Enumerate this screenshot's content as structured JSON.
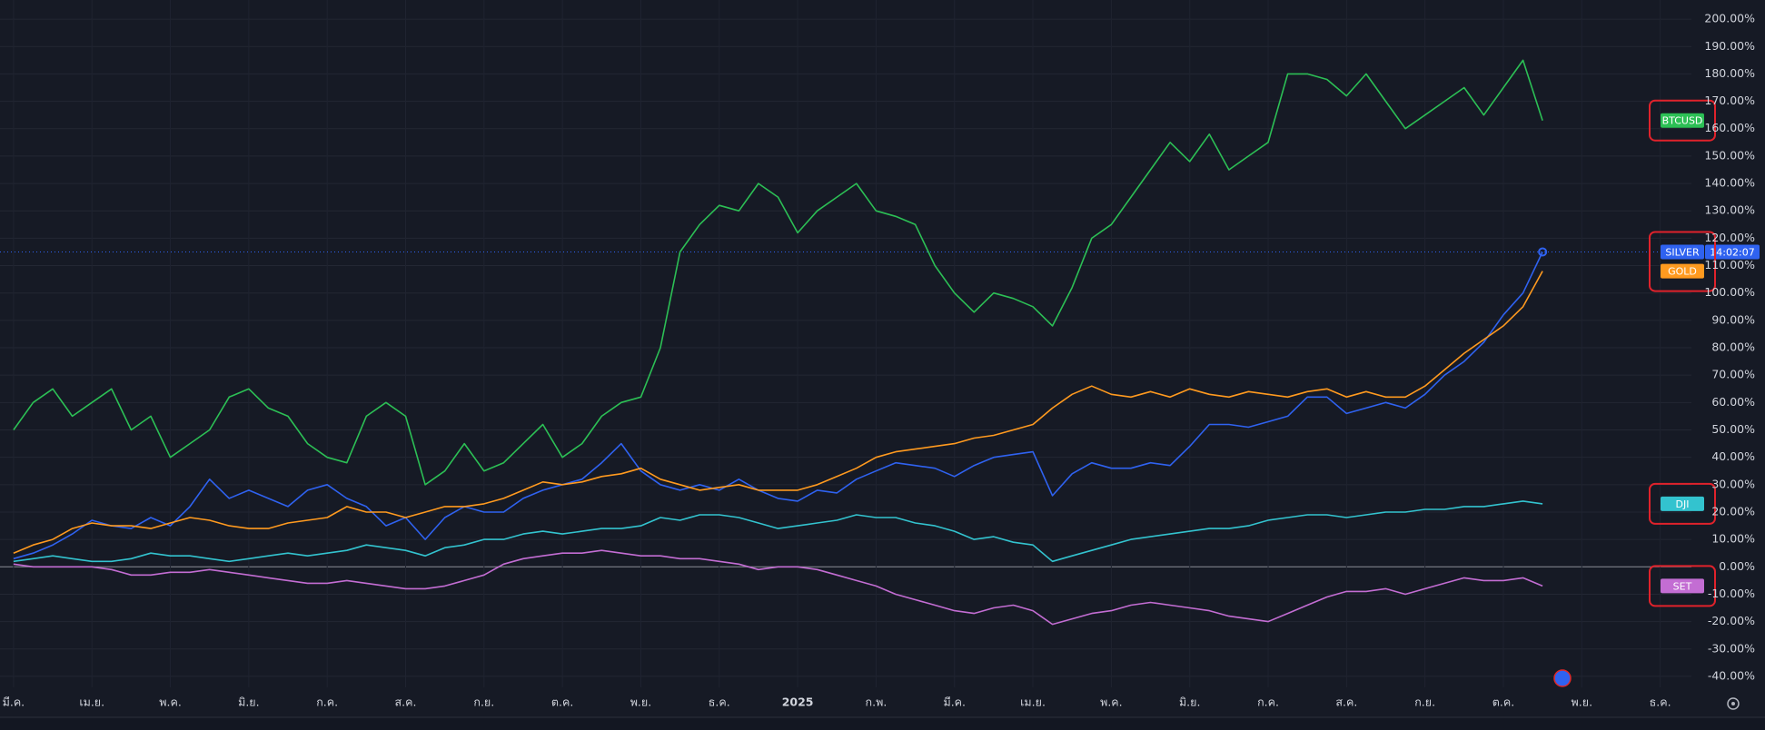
{
  "chart_data": {
    "type": "line",
    "categories": [
      "มี.ค.",
      null,
      null,
      null,
      "เม.ย.",
      null,
      null,
      null,
      "พ.ค.",
      null,
      null,
      null,
      "มิ.ย.",
      null,
      null,
      null,
      "ก.ค.",
      null,
      null,
      null,
      "ส.ค.",
      null,
      null,
      null,
      "ก.ย.",
      null,
      null,
      null,
      "ต.ค.",
      null,
      null,
      null,
      "พ.ย.",
      null,
      null,
      null,
      "ธ.ค.",
      null,
      null,
      null,
      "2025",
      null,
      null,
      null,
      "ก.พ.",
      null,
      null,
      null,
      "มี.ค.",
      null,
      null,
      null,
      "เม.ย.",
      null,
      null,
      null,
      "พ.ค.",
      null,
      null,
      null,
      "มิ.ย.",
      null,
      null,
      null,
      "ก.ค.",
      null,
      null,
      null,
      "ส.ค.",
      null,
      null,
      null,
      "ก.ย.",
      null,
      null,
      null,
      "ต.ค.",
      null,
      null,
      null,
      "พ.ย.",
      null,
      null,
      null,
      "ธ.ค.",
      null
    ],
    "series": [
      {
        "name": "BTCUSD",
        "color": "#2cbf55",
        "values": [
          50,
          60,
          65,
          55,
          60,
          65,
          50,
          55,
          40,
          45,
          50,
          62,
          65,
          58,
          55,
          45,
          40,
          38,
          55,
          60,
          55,
          30,
          35,
          45,
          35,
          38,
          45,
          52,
          40,
          45,
          55,
          60,
          62,
          80,
          115,
          125,
          132,
          130,
          140,
          135,
          122,
          130,
          135,
          140,
          130,
          128,
          125,
          110,
          100,
          93,
          100,
          98,
          95,
          88,
          102,
          120,
          125,
          135,
          145,
          155,
          148,
          158,
          145,
          150,
          155,
          180,
          180,
          178,
          172,
          180,
          170,
          160,
          165,
          170,
          175,
          165,
          175,
          185,
          163,
          null,
          null,
          null,
          null,
          null,
          null,
          null
        ]
      },
      {
        "name": "SILVER",
        "color": "#2f62f0",
        "values": [
          3,
          5,
          8,
          12,
          17,
          15,
          14,
          18,
          15,
          22,
          32,
          25,
          28,
          25,
          22,
          28,
          30,
          25,
          22,
          15,
          18,
          10,
          18,
          22,
          20,
          20,
          25,
          28,
          30,
          32,
          38,
          45,
          35,
          30,
          28,
          30,
          28,
          32,
          28,
          25,
          24,
          28,
          27,
          32,
          35,
          38,
          37,
          36,
          33,
          37,
          40,
          41,
          42,
          26,
          34,
          38,
          36,
          36,
          38,
          37,
          44,
          52,
          52,
          51,
          53,
          55,
          62,
          62,
          56,
          58,
          60,
          58,
          63,
          70,
          75,
          82,
          92,
          100,
          115,
          null,
          null,
          null,
          null,
          null,
          null,
          null
        ]
      },
      {
        "name": "GOLD",
        "color": "#ff9a1f",
        "values": [
          5,
          8,
          10,
          14,
          16,
          15,
          15,
          14,
          16,
          18,
          17,
          15,
          14,
          14,
          16,
          17,
          18,
          22,
          20,
          20,
          18,
          20,
          22,
          22,
          23,
          25,
          28,
          31,
          30,
          31,
          33,
          34,
          36,
          32,
          30,
          28,
          29,
          30,
          28,
          28,
          28,
          30,
          33,
          36,
          40,
          42,
          43,
          44,
          45,
          47,
          48,
          50,
          52,
          58,
          63,
          66,
          63,
          62,
          64,
          62,
          65,
          63,
          62,
          64,
          63,
          62,
          64,
          65,
          62,
          64,
          62,
          62,
          66,
          72,
          78,
          83,
          88,
          95,
          108,
          null,
          null,
          null,
          null,
          null,
          null,
          null
        ]
      },
      {
        "name": "DJI",
        "color": "#33c3cf",
        "values": [
          2,
          3,
          4,
          3,
          2,
          2,
          3,
          5,
          4,
          4,
          3,
          2,
          3,
          4,
          5,
          4,
          5,
          6,
          8,
          7,
          6,
          4,
          7,
          8,
          10,
          10,
          12,
          13,
          12,
          13,
          14,
          14,
          15,
          18,
          17,
          19,
          19,
          18,
          16,
          14,
          15,
          16,
          17,
          19,
          18,
          18,
          16,
          15,
          13,
          10,
          11,
          9,
          8,
          2,
          4,
          6,
          8,
          10,
          11,
          12,
          13,
          14,
          14,
          15,
          17,
          18,
          19,
          19,
          18,
          19,
          20,
          20,
          21,
          21,
          22,
          22,
          23,
          24,
          23,
          null,
          null,
          null,
          null,
          null,
          null,
          null
        ]
      },
      {
        "name": "SET",
        "color": "#c36dd3",
        "values": [
          1,
          0,
          0,
          0,
          0,
          -1,
          -3,
          -3,
          -2,
          -2,
          -1,
          -2,
          -3,
          -4,
          -5,
          -6,
          -6,
          -5,
          -6,
          -7,
          -8,
          -8,
          -7,
          -5,
          -3,
          1,
          3,
          4,
          5,
          5,
          6,
          5,
          4,
          4,
          3,
          3,
          2,
          1,
          -1,
          0,
          0,
          -1,
          -3,
          -5,
          -7,
          -10,
          -12,
          -14,
          -16,
          -17,
          -15,
          -14,
          -16,
          -21,
          -19,
          -17,
          -16,
          -14,
          -13,
          -14,
          -15,
          -16,
          -18,
          -19,
          -20,
          -17,
          -14,
          -11,
          -9,
          -9,
          -8,
          -10,
          -8,
          -6,
          -4,
          -5,
          -5,
          -4,
          -7,
          null,
          null,
          null,
          null,
          null,
          null,
          null
        ]
      }
    ],
    "countdown": "14:02:07",
    "ylim": [
      -44,
      207
    ],
    "yticks": [
      {
        "value": 200,
        "label": "200.00%"
      },
      {
        "value": 190,
        "label": "190.00%"
      },
      {
        "value": 180,
        "label": "180.00%"
      },
      {
        "value": 170,
        "label": "170.00%"
      },
      {
        "value": 160,
        "label": "160.00%"
      },
      {
        "value": 150,
        "label": "150.00%"
      },
      {
        "value": 140,
        "label": "140.00%"
      },
      {
        "value": 130,
        "label": "130.00%"
      },
      {
        "value": 120,
        "label": "120.00%"
      },
      {
        "value": 110,
        "label": "110.00%"
      },
      {
        "value": 100,
        "label": "100.00%"
      },
      {
        "value": 90,
        "label": "90.00%"
      },
      {
        "value": 80,
        "label": "80.00%"
      },
      {
        "value": 70,
        "label": "70.00%"
      },
      {
        "value": 60,
        "label": "60.00%"
      },
      {
        "value": 50,
        "label": "50.00%"
      },
      {
        "value": 40,
        "label": "40.00%"
      },
      {
        "value": 30,
        "label": "30.00%"
      },
      {
        "value": 20,
        "label": "20.00%"
      },
      {
        "value": 10,
        "label": "10.00%"
      },
      {
        "value": 0,
        "label": "0.00%"
      },
      {
        "value": -10,
        "label": "-10.00%"
      },
      {
        "value": -20,
        "label": "-20.00%"
      },
      {
        "value": -30,
        "label": "-30.00%"
      },
      {
        "value": -40,
        "label": "-40.00%"
      }
    ],
    "grid": true
  }
}
